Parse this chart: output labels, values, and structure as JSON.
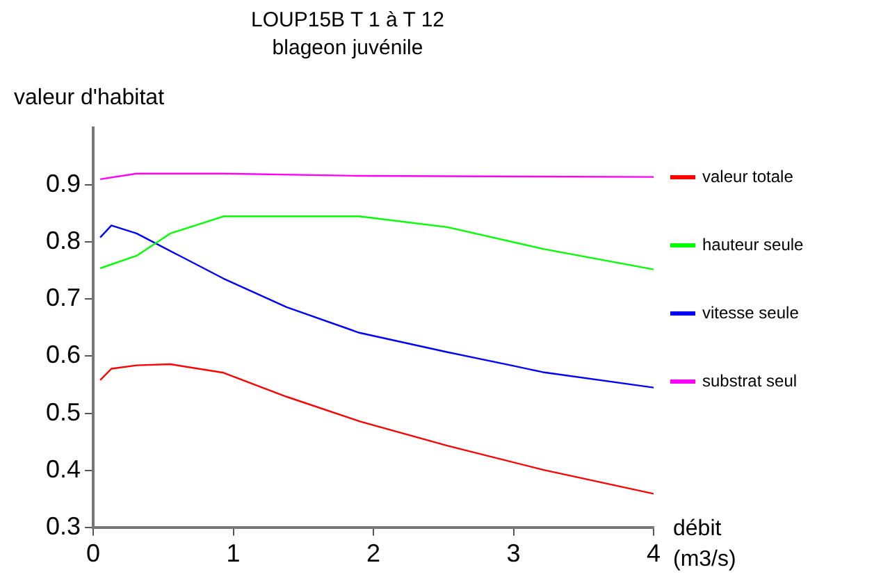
{
  "chart_data": {
    "type": "line",
    "title": "LOUP15B T 1 à T 12",
    "subtitle": "blageon juvénile",
    "xlabel": "débit (m3/s)",
    "ylabel": "valeur d'habitat",
    "xlim": [
      0,
      4
    ],
    "xticks": [
      0,
      1,
      2,
      3,
      4
    ],
    "ylim": [
      0.3,
      1.0
    ],
    "yticks": [
      0.3,
      0.4,
      0.5,
      0.6,
      0.7,
      0.8,
      0.9
    ],
    "grid": false,
    "legend": "right",
    "marker": "none",
    "line_style": "solid",
    "series": [
      {
        "name": "valeur totale",
        "color": "#ff0000",
        "x": [
          0.05,
          0.13,
          0.31,
          0.55,
          0.93,
          1.38,
          1.9,
          2.53,
          3.21,
          4.0
        ],
        "values": [
          0.558,
          0.578,
          0.584,
          0.586,
          0.571,
          0.529,
          0.486,
          0.443,
          0.401,
          0.359
        ]
      },
      {
        "name": "hauteur seule",
        "color": "#00ff00",
        "x": [
          0.05,
          0.31,
          0.55,
          0.93,
          1.9,
          2.53,
          3.21,
          4.0
        ],
        "values": [
          0.754,
          0.776,
          0.815,
          0.845,
          0.845,
          0.826,
          0.788,
          0.752
        ]
      },
      {
        "name": "vitesse seule",
        "color": "#0000ff",
        "x": [
          0.05,
          0.13,
          0.31,
          0.93,
          1.38,
          1.9,
          2.53,
          3.0,
          3.21,
          4.0
        ],
        "values": [
          0.808,
          0.829,
          0.815,
          0.736,
          0.686,
          0.641,
          0.607,
          0.583,
          0.572,
          0.545
        ]
      },
      {
        "name": "substrat seul",
        "color": "#ff00ff",
        "x": [
          0.05,
          0.31,
          0.55,
          0.93,
          1.9,
          4.0
        ],
        "values": [
          0.91,
          0.92,
          0.92,
          0.92,
          0.916,
          0.914
        ]
      }
    ]
  }
}
